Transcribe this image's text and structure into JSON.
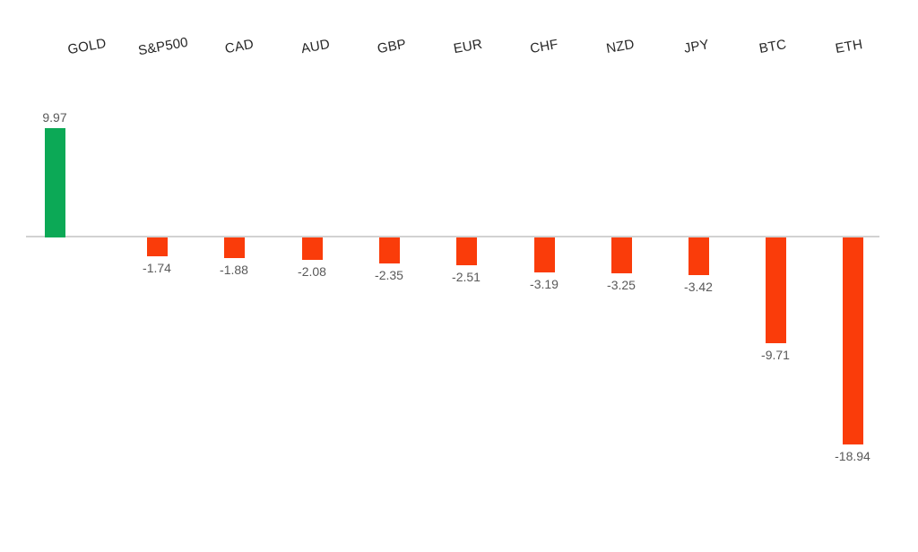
{
  "chart_data": {
    "type": "bar",
    "categories": [
      "GOLD",
      "S&P500",
      "CAD",
      "AUD",
      "GBP",
      "EUR",
      "CHF",
      "NZD",
      "JPY",
      "BTC",
      "ETH"
    ],
    "values": [
      9.97,
      -1.74,
      -1.88,
      -2.08,
      -2.35,
      -2.51,
      -3.19,
      -3.25,
      -3.42,
      -9.71,
      -18.94
    ],
    "data_labels": [
      "9.97",
      "-1.74",
      "-1.88",
      "-2.08",
      "-2.35",
      "-2.51",
      "-3.19",
      "-3.25",
      "-3.42",
      "-9.71",
      "-18.94"
    ],
    "title": "",
    "xlabel": "",
    "ylabel": "",
    "ylim": [
      -20,
      10
    ],
    "grid": false,
    "legend": false,
    "axis_ticks_visible": false,
    "colors": {
      "positive": "#0ca956",
      "negative": "#fa3c0a",
      "axis_line": "#d2d2d2",
      "data_label_text": "#595959",
      "category_label_text": "#262626",
      "background": "#ffffff"
    }
  }
}
